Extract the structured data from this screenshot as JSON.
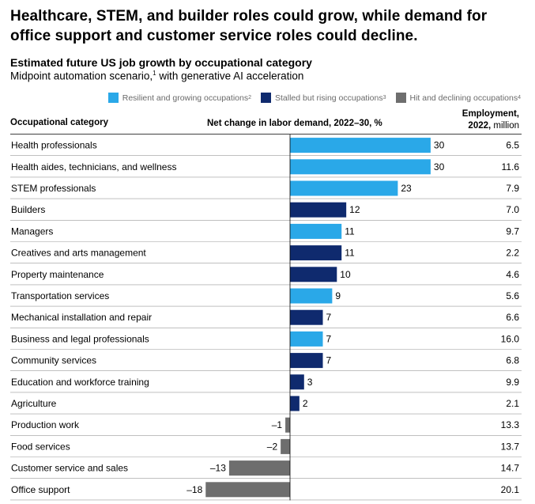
{
  "headline": "Healthcare, STEM, and builder roles could grow, while demand for office support and customer service roles could decline.",
  "chart_data": {
    "type": "bar",
    "orientation": "horizontal",
    "title": "Estimated future US job growth by occupational category",
    "subtitle_text": "Midpoint automation scenario,",
    "subtitle_sup": "1",
    "subtitle_rest": " with generative AI acceleration",
    "category_header": "Occupational category",
    "value_header": "Net change in labor demand, 2022–30, %",
    "employment_header_line1": "Employment,",
    "employment_header_line2": "2022,",
    "employment_header_unit": " million",
    "legend": [
      {
        "name": "Resilient and growing occupations",
        "sup": "2",
        "color": "#2aa8e8"
      },
      {
        "name": "Stalled but rising occupations",
        "sup": "3",
        "color": "#0f2a6e"
      },
      {
        "name": "Hit and declining occupations",
        "sup": "4",
        "color": "#6e6e6e"
      }
    ],
    "categories": [
      "Health professionals",
      "Health aides, technicians, and wellness",
      "STEM professionals",
      "Builders",
      "Managers",
      "Creatives and arts management",
      "Property maintenance",
      "Transportation services",
      "Mechanical installation and repair",
      "Business and legal professionals",
      "Community services",
      "Education and workforce training",
      "Agriculture",
      "Production work",
      "Food services",
      "Customer service and sales",
      "Office support"
    ],
    "values": [
      30,
      30,
      23,
      12,
      11,
      11,
      10,
      9,
      7,
      7,
      7,
      3,
      2,
      -1,
      -2,
      -13,
      -18
    ],
    "value_labels": [
      "30",
      "30",
      "23",
      "12",
      "11",
      "11",
      "10",
      "9",
      "7",
      "7",
      "7",
      "3",
      "2",
      "–1",
      "–2",
      "–13",
      "–18"
    ],
    "groups": [
      0,
      0,
      0,
      1,
      0,
      1,
      1,
      0,
      1,
      0,
      1,
      1,
      1,
      2,
      2,
      2,
      2
    ],
    "employment": [
      "6.5",
      "11.6",
      "7.9",
      "7.0",
      "9.7",
      "2.2",
      "4.6",
      "5.6",
      "6.6",
      "16.0",
      "6.8",
      "9.9",
      "2.1",
      "13.3",
      "13.7",
      "14.7",
      "20.1"
    ]
  }
}
